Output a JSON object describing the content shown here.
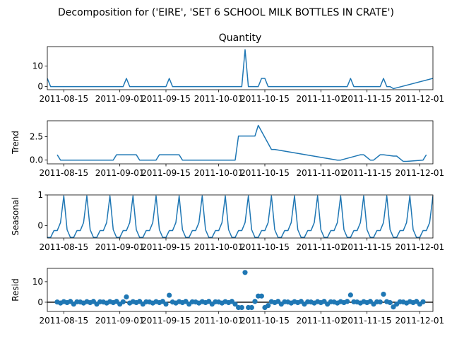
{
  "figure": {
    "suptitle": "Decomposition for ('EIRE', 'SET 6 SCHOOL MILK BOTTLES IN CRATE')",
    "line_color": "#1f77b4",
    "zero_line_color": "#000000"
  },
  "chart_data": [
    {
      "type": "line",
      "title": "Quantity",
      "ylabel": "",
      "xlim": [
        "2011-08-10",
        "2011-12-05"
      ],
      "ylim": [
        -1.5,
        19.5
      ],
      "yticks": [
        0,
        10
      ],
      "xticks": [
        "2011-08-15",
        "2011-09-01",
        "2011-09-15",
        "2011-10-01",
        "2011-10-15",
        "2011-11-01",
        "2011-11-15",
        "2011-12-01"
      ],
      "series": [
        {
          "x": [
            "2011-08-10",
            "2011-08-11",
            "2011-09-02",
            "2011-09-03",
            "2011-09-04",
            "2011-09-15",
            "2011-09-16",
            "2011-09-17",
            "2011-10-08",
            "2011-10-09",
            "2011-10-10",
            "2011-10-13",
            "2011-10-14",
            "2011-10-15",
            "2011-10-16",
            "2011-11-09",
            "2011-11-10",
            "2011-11-11",
            "2011-11-19",
            "2011-11-20",
            "2011-11-21",
            "2011-11-22",
            "2011-11-23",
            "2011-12-05"
          ],
          "y": [
            4,
            0,
            0,
            4,
            0,
            0,
            4,
            0,
            0,
            18,
            0,
            0,
            4,
            4,
            0,
            0,
            4,
            0,
            0,
            4,
            0,
            0,
            -1,
            4
          ]
        }
      ]
    },
    {
      "type": "line",
      "title": "",
      "ylabel": "Trend",
      "xlim": [
        "2011-08-10",
        "2011-12-05"
      ],
      "ylim": [
        -0.4,
        4.2
      ],
      "yticks": [
        0.0,
        2.5
      ],
      "ytick_labels": [
        "0.0",
        "2.5"
      ],
      "xticks": [
        "2011-08-15",
        "2011-09-01",
        "2011-09-15",
        "2011-10-01",
        "2011-10-15",
        "2011-11-01",
        "2011-11-15",
        "2011-12-01"
      ],
      "series": [
        {
          "x": [
            "2011-08-13",
            "2011-08-14",
            "2011-08-30",
            "2011-08-31",
            "2011-09-06",
            "2011-09-07",
            "2011-09-12",
            "2011-09-13",
            "2011-09-19",
            "2011-09-20",
            "2011-10-06",
            "2011-10-07",
            "2011-10-11",
            "2011-10-12",
            "2011-10-13",
            "2011-10-17",
            "2011-10-18",
            "2011-11-06",
            "2011-11-07",
            "2011-11-13",
            "2011-11-14",
            "2011-11-16",
            "2011-11-17",
            "2011-11-19",
            "2011-11-20",
            "2011-11-23",
            "2011-11-24",
            "2011-11-26",
            "2011-11-27",
            "2011-12-02",
            "2011-12-03"
          ],
          "y": [
            0.57,
            0,
            0,
            0.57,
            0.57,
            0,
            0,
            0.57,
            0.57,
            0,
            0,
            2.57,
            2.57,
            2.57,
            3.71,
            1.14,
            1.14,
            0,
            0,
            0.57,
            0.57,
            0,
            0,
            0.57,
            0.57,
            0.43,
            0.43,
            -0.14,
            -0.14,
            0,
            0.57
          ]
        }
      ]
    },
    {
      "type": "line",
      "title": "",
      "ylabel": "Seasonal",
      "xlim": [
        "2011-08-10",
        "2011-12-05"
      ],
      "ylim": [
        -0.4,
        1.0
      ],
      "yticks": [
        0,
        1
      ],
      "xticks": [
        "2011-08-15",
        "2011-09-01",
        "2011-09-15",
        "2011-10-01",
        "2011-10-15",
        "2011-11-01",
        "2011-11-15",
        "2011-12-01"
      ],
      "start_date": "2011-08-10",
      "end_date": "2011-12-05",
      "weekly_pattern": [
        -0.38,
        -0.38,
        -0.16,
        -0.16,
        0.1,
        0.97,
        -0.13
      ]
    },
    {
      "type": "scatter",
      "title": "",
      "ylabel": "Resid",
      "xlim": [
        "2011-08-10",
        "2011-12-05"
      ],
      "ylim": [
        -4.5,
        16.5
      ],
      "yticks": [
        0,
        10
      ],
      "zero_line": true,
      "xticks": [
        "2011-08-15",
        "2011-09-01",
        "2011-09-15",
        "2011-10-01",
        "2011-10-15",
        "2011-11-01",
        "2011-11-15",
        "2011-12-01"
      ],
      "start_date": "2011-08-13",
      "end_date": "2011-12-02",
      "outliers": [
        {
          "x": "2011-09-03",
          "y": 2.6
        },
        {
          "x": "2011-09-16",
          "y": 3.4
        },
        {
          "x": "2011-10-07",
          "y": -2.6
        },
        {
          "x": "2011-10-08",
          "y": -2.6
        },
        {
          "x": "2011-10-09",
          "y": 14.5
        },
        {
          "x": "2011-10-10",
          "y": -2.6
        },
        {
          "x": "2011-10-11",
          "y": -2.6
        },
        {
          "x": "2011-10-13",
          "y": 3.0
        },
        {
          "x": "2011-10-14",
          "y": 3.0
        },
        {
          "x": "2011-10-15",
          "y": -2.6
        },
        {
          "x": "2011-10-16",
          "y": -1.6
        },
        {
          "x": "2011-11-10",
          "y": 3.5
        },
        {
          "x": "2011-11-20",
          "y": 3.9
        },
        {
          "x": "2011-11-23",
          "y": -2.3
        }
      ],
      "baseline_pattern": [
        0.1,
        -0.4,
        0.3,
        -0.2,
        0.4,
        -0.9,
        0.2
      ]
    }
  ]
}
